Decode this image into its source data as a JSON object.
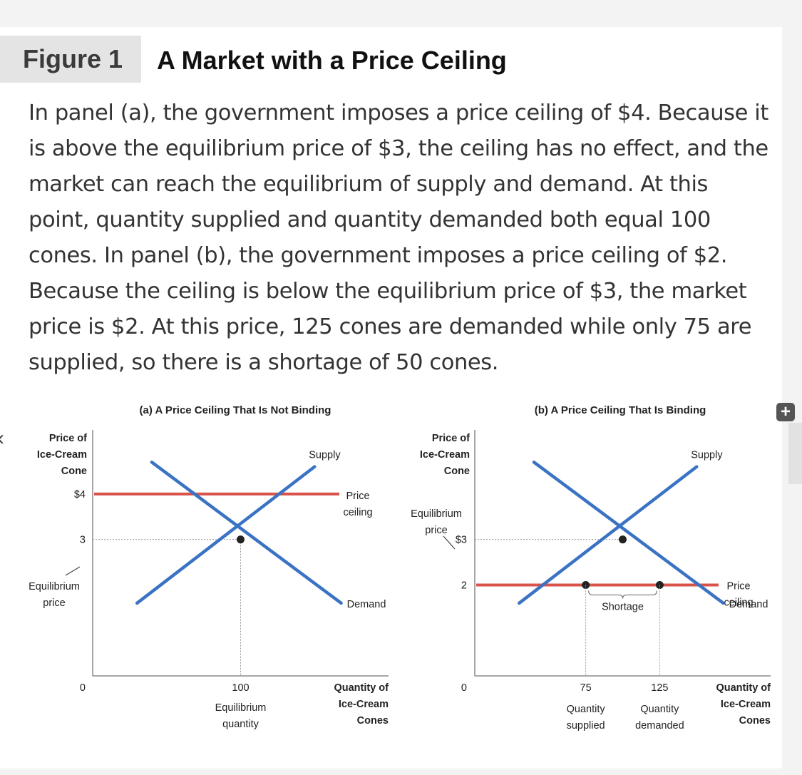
{
  "header": {
    "figure_label": "Figure 1",
    "figure_title": "A Market with a Price Ceiling"
  },
  "caption": "In panel (a), the government imposes a price ceiling of $4. Because it is above the equilibrium price of $3, the ceiling has no effect, and the market can reach the equilibrium of supply and demand. At this point, quantity supplied and quantity demanded both equal 100 cones. In panel (b), the government imposes a price ceiling of $2. Because the ceiling is below the equilibrium price of $3, the market price is $2. At this price, 125 cones are demanded while only 75 are supplied, so there is a shortage of 50 cones.",
  "controls": {
    "expand_icon": "plus-icon",
    "expand_symbol": "+",
    "prev_icon": "chevron-left-icon",
    "prev_symbol": "‹"
  },
  "colors": {
    "curve": "#3a73c4",
    "ceiling": "#d9534a",
    "axis": "#8a8a8a"
  },
  "chart_data": [
    {
      "type": "line",
      "title": "(a) A Price Ceiling That Is Not Binding",
      "ylabel": [
        "Price of",
        "Ice-Cream",
        "Cone"
      ],
      "xlabel": [
        "Quantity of",
        "Ice-Cream",
        "Cones"
      ],
      "y_ticks": [
        {
          "value": 0,
          "label": "0"
        },
        {
          "value": 3,
          "label": "3"
        },
        {
          "value": 4,
          "label": "$4"
        }
      ],
      "x_ticks": [
        {
          "value": 100,
          "label": "100"
        }
      ],
      "series": [
        {
          "name": "Supply",
          "points": [
            [
              30,
              1.6
            ],
            [
              150,
              4.6
            ]
          ]
        },
        {
          "name": "Demand",
          "points": [
            [
              40,
              4.7
            ],
            [
              168,
              1.6
            ]
          ]
        }
      ],
      "price_ceiling": {
        "value": 4,
        "label": [
          "Price",
          "ceiling"
        ]
      },
      "equilibrium": {
        "quantity": 100,
        "price": 3
      },
      "annotations": {
        "equilibrium_price": [
          "Equilibrium",
          "price"
        ],
        "equilibrium_quantity": [
          "Equilibrium",
          "quantity"
        ]
      }
    },
    {
      "type": "line",
      "title": "(b) A Price Ceiling That Is Binding",
      "ylabel": [
        "Price of",
        "Ice-Cream",
        "Cone"
      ],
      "xlabel": [
        "Quantity of",
        "Ice-Cream",
        "Cones"
      ],
      "y_ticks": [
        {
          "value": 0,
          "label": "0"
        },
        {
          "value": 2,
          "label": "2"
        },
        {
          "value": 3,
          "label": "$3"
        }
      ],
      "x_ticks": [
        {
          "value": 75,
          "label": "75"
        },
        {
          "value": 125,
          "label": "125"
        }
      ],
      "series": [
        {
          "name": "Supply",
          "points": [
            [
              30,
              1.6
            ],
            [
              150,
              4.6
            ]
          ]
        },
        {
          "name": "Demand",
          "points": [
            [
              40,
              4.7
            ],
            [
              168,
              1.6
            ]
          ]
        }
      ],
      "price_ceiling": {
        "value": 2,
        "label": [
          "Price",
          "ceiling"
        ]
      },
      "equilibrium": {
        "quantity": 100,
        "price": 3
      },
      "shortage": {
        "from": 75,
        "to": 125,
        "label": "Shortage"
      },
      "annotations": {
        "equilibrium_price": [
          "Equilibrium",
          "price"
        ],
        "quantity_supplied": [
          "Quantity",
          "supplied"
        ],
        "quantity_demanded": [
          "Quantity",
          "demanded"
        ]
      }
    }
  ]
}
